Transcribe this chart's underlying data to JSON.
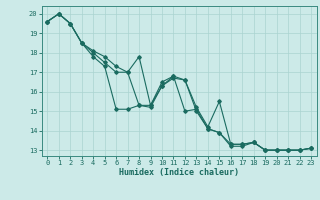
{
  "xlabel": "Humidex (Indice chaleur)",
  "bg_color": "#cceae8",
  "grid_color": "#aad4d0",
  "line_color": "#1a6b60",
  "spine_color": "#3a8a80",
  "xlim": [
    -0.5,
    23.5
  ],
  "ylim": [
    12.7,
    20.4
  ],
  "yticks": [
    13,
    14,
    15,
    16,
    17,
    18,
    19,
    20
  ],
  "xticks": [
    0,
    1,
    2,
    3,
    4,
    5,
    6,
    7,
    8,
    9,
    10,
    11,
    12,
    13,
    14,
    15,
    16,
    17,
    18,
    19,
    20,
    21,
    22,
    23
  ],
  "series1_x": [
    0,
    1,
    2,
    3,
    4,
    5,
    6,
    7,
    8,
    9,
    10,
    11,
    12,
    13,
    14,
    15,
    16,
    17,
    18,
    19,
    20,
    21,
    22,
    23
  ],
  "series1_y": [
    19.6,
    20.0,
    19.5,
    18.5,
    17.8,
    17.3,
    15.1,
    15.1,
    15.3,
    15.2,
    16.3,
    16.7,
    16.6,
    15.0,
    14.1,
    13.9,
    13.2,
    13.2,
    13.4,
    13.0,
    13.0,
    13.0,
    13.0,
    13.1
  ],
  "series2_x": [
    0,
    1,
    2,
    3,
    4,
    5,
    6,
    7,
    8,
    9,
    10,
    11,
    12,
    13,
    14,
    15,
    16,
    17,
    18,
    19,
    20,
    21,
    22,
    23
  ],
  "series2_y": [
    19.6,
    20.0,
    19.5,
    18.5,
    18.0,
    17.5,
    17.0,
    17.0,
    17.8,
    15.3,
    16.5,
    16.8,
    16.6,
    15.2,
    14.2,
    15.5,
    13.3,
    13.3,
    13.4,
    13.0,
    13.0,
    13.0,
    13.0,
    13.1
  ],
  "series3_x": [
    0,
    1,
    2,
    3,
    4,
    5,
    6,
    7,
    8,
    9,
    10,
    11,
    12,
    13,
    14,
    15,
    16,
    17,
    18,
    19,
    20,
    21,
    22,
    23
  ],
  "series3_y": [
    19.6,
    20.0,
    19.5,
    18.5,
    18.1,
    17.8,
    17.3,
    17.0,
    15.3,
    15.3,
    16.3,
    16.8,
    15.0,
    15.1,
    14.1,
    13.9,
    13.3,
    13.3,
    13.4,
    13.0,
    13.0,
    13.0,
    13.0,
    13.1
  ]
}
